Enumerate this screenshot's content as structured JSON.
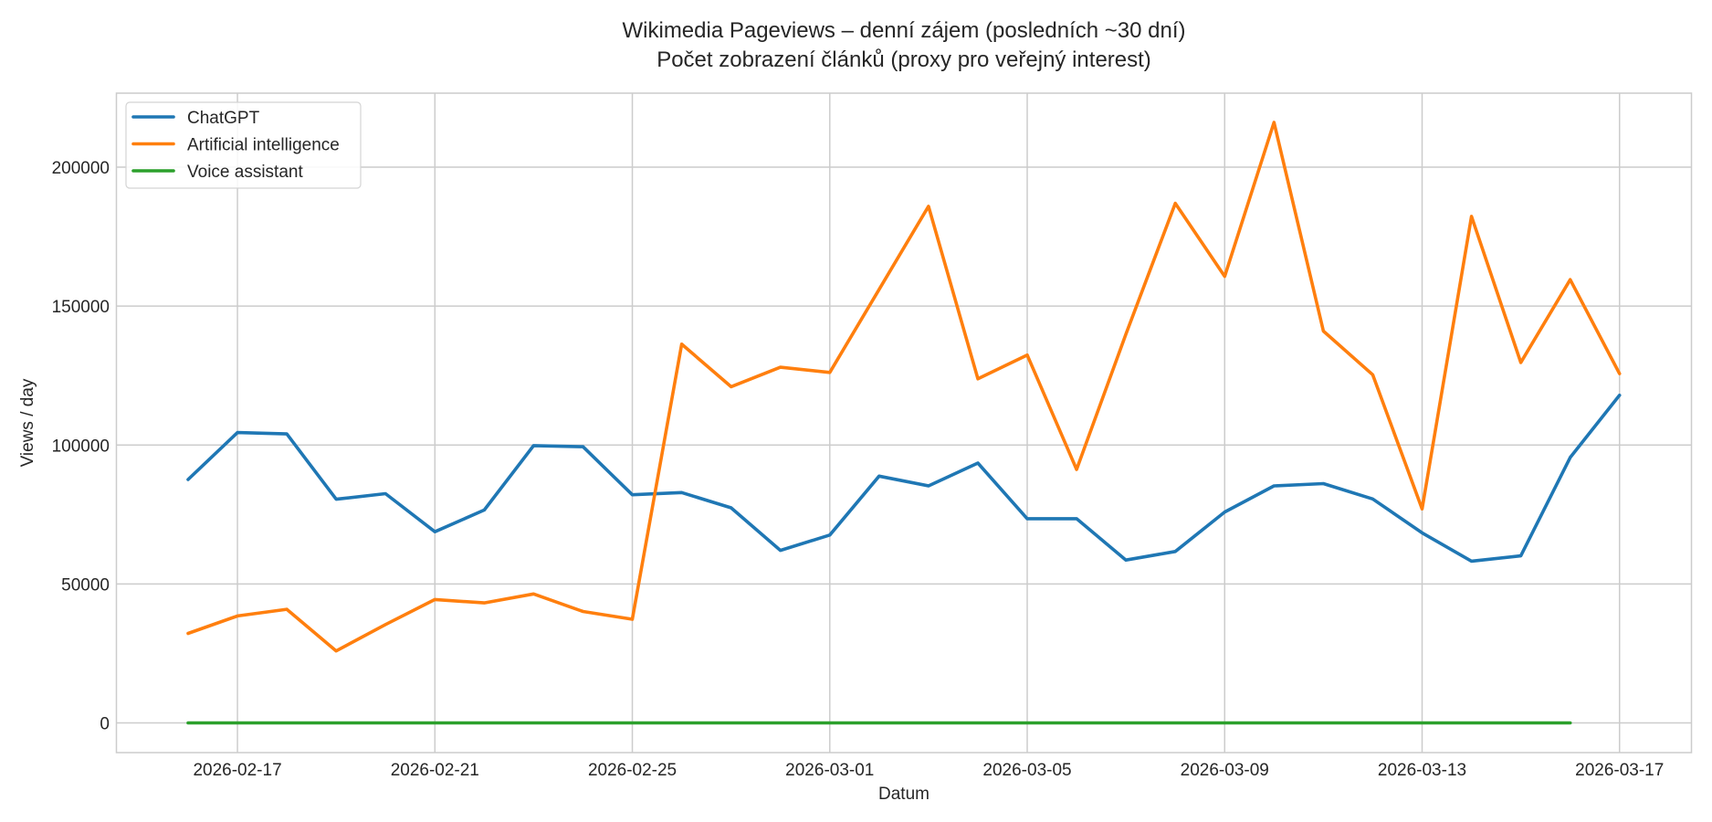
{
  "chart_data": {
    "type": "line",
    "title": "Wikimedia Pageviews – denní zájem (posledních ~30 dní)",
    "subtitle": "Počet zobrazení článků (proxy pro veřejný interest)",
    "xlabel": "Datum",
    "ylabel": "Views / day",
    "ylim": [
      -10500,
      226000
    ],
    "xlim": [
      "2026-02-14T19:00",
      "2026-03-18T05:00"
    ],
    "grid": true,
    "legend_position": "upper left",
    "x_ticks": [
      "2026-02-17",
      "2026-02-21",
      "2026-02-25",
      "2026-03-01",
      "2026-03-05",
      "2026-03-09",
      "2026-03-13",
      "2026-03-17"
    ],
    "y_ticks": [
      0,
      50000,
      100000,
      150000,
      200000
    ],
    "x": [
      "2026-02-16",
      "2026-02-17",
      "2026-02-18",
      "2026-02-19",
      "2026-02-20",
      "2026-02-21",
      "2026-02-22",
      "2026-02-23",
      "2026-02-24",
      "2026-02-25",
      "2026-02-26",
      "2026-02-27",
      "2026-02-28",
      "2026-03-01",
      "2026-03-02",
      "2026-03-03",
      "2026-03-04",
      "2026-03-05",
      "2026-03-06",
      "2026-03-07",
      "2026-03-08",
      "2026-03-09",
      "2026-03-10",
      "2026-03-11",
      "2026-03-12",
      "2026-03-13",
      "2026-03-14",
      "2026-03-15",
      "2026-03-16",
      "2026-03-17"
    ],
    "series": [
      {
        "name": "ChatGPT",
        "color": "#1f77b4",
        "values": [
          87600,
          104500,
          104000,
          80500,
          82500,
          68800,
          76600,
          99800,
          99400,
          82100,
          82900,
          77400,
          62100,
          67600,
          88800,
          85300,
          93500,
          73500,
          73500,
          58600,
          61700,
          75900,
          85300,
          86100,
          80600,
          68400,
          58200,
          60100,
          95500,
          117900
        ]
      },
      {
        "name": "Artificial intelligence",
        "color": "#ff7f0e",
        "values": [
          32200,
          38500,
          40900,
          25900,
          35400,
          44400,
          43200,
          46400,
          40100,
          37300,
          136300,
          121000,
          128000,
          126100,
          156000,
          185900,
          123800,
          132400,
          91200,
          139900,
          187000,
          160700,
          216100,
          141000,
          125300,
          77000,
          182300,
          129700,
          159500,
          125700
        ]
      },
      {
        "name": "Voice assistant",
        "color": "#2ca02c",
        "values": [
          0,
          0,
          0,
          0,
          0,
          0,
          0,
          0,
          0,
          0,
          0,
          0,
          0,
          0,
          0,
          0,
          0,
          0,
          0,
          0,
          0,
          0,
          0,
          0,
          0,
          0,
          0,
          0,
          0,
          null
        ]
      }
    ]
  },
  "labels": {
    "title": "Wikimedia Pageviews – denní zájem (posledních ~30 dní)",
    "subtitle": "Počet zobrazení článků (proxy pro veřejný interest)",
    "xlabel": "Datum",
    "ylabel": "Views / day"
  }
}
